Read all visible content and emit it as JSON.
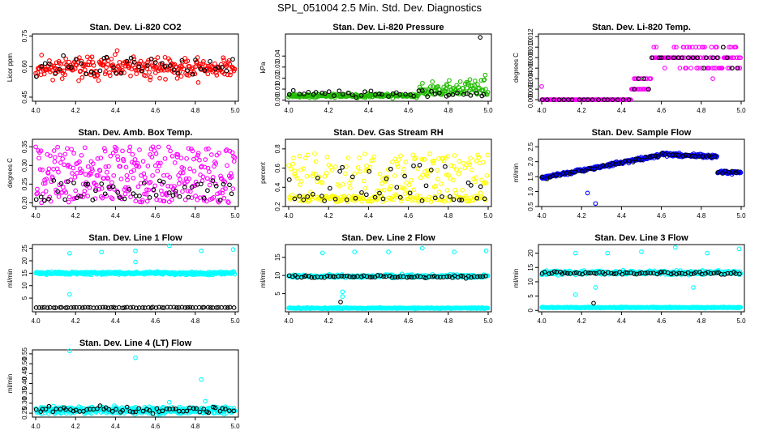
{
  "figure": {
    "title": "SPL_051004  2.5 Min. Std. Dev. Diagnostics"
  },
  "colors": {
    "axis": "#000000",
    "co2": "#ff0000",
    "pressure": "#22bb00",
    "temp": "#ff00ff",
    "box_temp": "#ff00ff",
    "rh": "#ffff00",
    "sample_flow": "#0000ff",
    "line_flow": "#00ffff",
    "overlay": "#000000"
  },
  "chart_data": [
    {
      "id": "co2",
      "type": "scatter",
      "title": "Stan. Dev. Li-820 CO2",
      "xlabel": "",
      "ylabel": "Licor ppm",
      "xlim": [
        4.0,
        5.0
      ],
      "ylim": [
        0.43,
        0.76
      ],
      "xticks": [
        "4.0",
        "4.2",
        "4.4",
        "4.6",
        "4.8",
        "5.0"
      ],
      "yticks": [
        0.45,
        0.6,
        0.75
      ],
      "ytick_labels": [
        "0.45",
        "0.60",
        "0.75"
      ],
      "series": [
        {
          "name": "Li-820 CO2 std dev",
          "color": "#ff0000",
          "profile": {
            "kind": "noise",
            "base": 0.595,
            "amp": 0.06,
            "n": 280,
            "lo": 0.44,
            "hi": 0.74,
            "seed": 11
          }
        },
        {
          "name": "overlay",
          "color": "#000000",
          "profile": {
            "kind": "noise",
            "base": 0.6,
            "amp": 0.055,
            "n": 45,
            "lo": 0.47,
            "hi": 0.72,
            "seed": 12
          }
        }
      ]
    },
    {
      "id": "pressure",
      "type": "scatter",
      "title": "Stan. Dev. Li-820 Pressure",
      "xlabel": "",
      "ylabel": "kPa",
      "xlim": [
        4.0,
        5.0
      ],
      "ylim": [
        -0.001,
        0.06
      ],
      "xticks": [
        "4.0",
        "4.2",
        "4.4",
        "4.6",
        "4.8",
        "5.0"
      ],
      "yticks": [
        0.0,
        0.01,
        0.02,
        0.03,
        0.04
      ],
      "ytick_labels": [
        "0.00",
        "0.01",
        "0.02",
        "0.03",
        "0.04"
      ],
      "series": [
        {
          "name": "Li-820 Pressure std dev",
          "color": "#22bb00",
          "profile": {
            "kind": "pressure",
            "n": 300,
            "seed": 21
          }
        },
        {
          "name": "overlay",
          "color": "#000000",
          "profile": {
            "kind": "noise",
            "base": 0.006,
            "amp": 0.003,
            "n": 45,
            "lo": 0.001,
            "hi": 0.014,
            "seed": 22
          }
        }
      ],
      "outliers": [
        {
          "x": 4.96,
          "y": 0.057,
          "color": "#000000"
        }
      ]
    },
    {
      "id": "temp",
      "type": "scatter",
      "title": "Stan. Dev. Li-820 Temp.",
      "xlabel": "",
      "ylabel": "degrees C",
      "xlim": [
        4.0,
        5.0
      ],
      "ylim": [
        -0.0003,
        0.0125
      ],
      "xticks": [
        "4.0",
        "4.2",
        "4.4",
        "4.6",
        "4.8",
        "5.0"
      ],
      "yticks": [
        0.0,
        0.002,
        0.004,
        0.006,
        0.008,
        0.01,
        0.012
      ],
      "ytick_labels": [
        "0.000",
        "0.002",
        "0.004",
        "0.006",
        "0.008",
        "0.010",
        "0.012"
      ],
      "series": [
        {
          "name": "Li-820 Temp std dev",
          "color": "#ff00ff",
          "profile": {
            "kind": "temp",
            "n": 260,
            "seed": 31
          }
        },
        {
          "name": "overlay",
          "color": "#000000",
          "profile": {
            "kind": "temp",
            "n": 40,
            "seed": 32
          }
        }
      ],
      "outliers": [
        {
          "x": 4.0,
          "y": 0.0025,
          "color": "#ff00ff"
        }
      ]
    },
    {
      "id": "box_temp",
      "type": "scatter",
      "title": "Stan. Dev. Amb. Box Temp.",
      "xlabel": "",
      "ylabel": "degrees C",
      "xlim": [
        4.0,
        5.0
      ],
      "ylim": [
        0.19,
        0.37
      ],
      "xticks": [
        "4.0",
        "4.2",
        "4.4",
        "4.6",
        "4.8",
        "5.0"
      ],
      "yticks": [
        0.2,
        0.25,
        0.3,
        0.35
      ],
      "ytick_labels": [
        "0.20",
        "0.25",
        "0.30",
        "0.35"
      ],
      "series": [
        {
          "name": "Amb. Box Temp std dev",
          "color": "#ff00ff",
          "profile": {
            "kind": "uniform",
            "lo": 0.2,
            "hi": 0.35,
            "n": 320,
            "seed": 41
          }
        },
        {
          "name": "overlay",
          "color": "#000000",
          "profile": {
            "kind": "uniform",
            "lo": 0.205,
            "hi": 0.26,
            "n": 50,
            "seed": 42
          }
        }
      ]
    },
    {
      "id": "rh",
      "type": "scatter",
      "title": "Stan. Dev. Gas Stream RH",
      "xlabel": "",
      "ylabel": "percent",
      "xlim": [
        4.0,
        5.0
      ],
      "ylim": [
        0.2,
        0.9
      ],
      "xticks": [
        "4.0",
        "4.2",
        "4.4",
        "4.6",
        "4.8",
        "5.0"
      ],
      "yticks": [
        0.2,
        0.4,
        0.6,
        0.8
      ],
      "ytick_labels": [
        "0.2",
        "0.4",
        "0.6",
        "0.8"
      ],
      "series": [
        {
          "name": "Gas Stream RH std dev",
          "color": "#ffff00",
          "profile": {
            "kind": "rh",
            "n": 300,
            "seed": 51
          }
        },
        {
          "name": "overlay",
          "color": "#000000",
          "profile": {
            "kind": "rh",
            "n": 45,
            "seed": 52
          }
        }
      ]
    },
    {
      "id": "sample_flow",
      "type": "scatter",
      "title": "Stan. Dev. Sample Flow",
      "xlabel": "",
      "ylabel": "ml/min",
      "xlim": [
        4.0,
        5.0
      ],
      "ylim": [
        0.5,
        2.75
      ],
      "xticks": [
        "4.0",
        "4.2",
        "4.4",
        "4.6",
        "4.8",
        "5.0"
      ],
      "yticks": [
        0.5,
        1.0,
        1.5,
        2.0,
        2.5
      ],
      "ytick_labels": [
        "0.5",
        "1.0",
        "1.5",
        "2.0",
        "2.5"
      ],
      "series": [
        {
          "name": "Sample Flow std dev",
          "color": "#0000ff",
          "profile": {
            "kind": "flow",
            "n": 360,
            "seed": 61
          }
        },
        {
          "name": "overlay",
          "color": "#000000",
          "profile": {
            "kind": "flow",
            "n": 60,
            "seed": 62
          }
        }
      ],
      "outliers": [
        {
          "x": 4.27,
          "y": 0.6,
          "color": "#0000ff"
        },
        {
          "x": 4.23,
          "y": 0.95,
          "color": "#0000ff"
        }
      ]
    },
    {
      "id": "line1",
      "type": "scatter",
      "title": "Stan. Dev. Line 1 Flow",
      "xlabel": "",
      "ylabel": "ml/min",
      "xlim": [
        4.0,
        5.0
      ],
      "ylim": [
        -0.5,
        26.5
      ],
      "xticks": [
        "4.0",
        "4.2",
        "4.4",
        "4.6",
        "4.8",
        "5.0"
      ],
      "yticks": [
        5,
        10,
        15,
        20,
        25
      ],
      "ytick_labels": [
        "5",
        "10",
        "15",
        "20",
        "25"
      ],
      "series": [
        {
          "name": "Line 1 Flow std dev",
          "color": "#00ffff",
          "profile": {
            "kind": "band",
            "base": 15.0,
            "amp": 0.5,
            "n": 330,
            "seed": 71
          }
        },
        {
          "name": "overlay",
          "color": "#000000",
          "profile": {
            "kind": "band",
            "base": 1.2,
            "amp": 0.15,
            "n": 70,
            "seed": 72
          }
        }
      ],
      "outliers": [
        {
          "x": 4.17,
          "y": 23.0,
          "color": "#00ffff"
        },
        {
          "x": 4.33,
          "y": 23.5,
          "color": "#00ffff"
        },
        {
          "x": 4.5,
          "y": 24.0,
          "color": "#00ffff"
        },
        {
          "x": 4.67,
          "y": 26.0,
          "color": "#00ffff"
        },
        {
          "x": 4.83,
          "y": 24.0,
          "color": "#00ffff"
        },
        {
          "x": 4.99,
          "y": 24.5,
          "color": "#00ffff"
        },
        {
          "x": 4.17,
          "y": 6.5,
          "color": "#00ffff"
        },
        {
          "x": 4.5,
          "y": 19.5,
          "color": "#00ffff"
        }
      ]
    },
    {
      "id": "line2",
      "type": "scatter",
      "title": "Stan. Dev. Line 2 Flow",
      "xlabel": "",
      "ylabel": "ml/min",
      "xlim": [
        4.0,
        5.0
      ],
      "ylim": [
        0,
        18.5
      ],
      "xticks": [
        "4.0",
        "4.2",
        "4.4",
        "4.6",
        "4.8",
        "5.0"
      ],
      "yticks": [
        5,
        10,
        15
      ],
      "ytick_labels": [
        "5",
        "10",
        "15"
      ],
      "series": [
        {
          "name": "Line 2 Flow cyan band",
          "color": "#00ffff",
          "profile": {
            "kind": "band",
            "base": 9.8,
            "amp": 0.4,
            "n": 300,
            "seed": 81
          }
        },
        {
          "name": "Line 2 Flow cyan low",
          "color": "#00ffff",
          "profile": {
            "kind": "band",
            "base": 1.0,
            "amp": 0.12,
            "n": 330,
            "seed": 82
          }
        },
        {
          "name": "overlay",
          "color": "#000000",
          "profile": {
            "kind": "band",
            "base": 9.7,
            "amp": 0.3,
            "n": 70,
            "seed": 83
          }
        }
      ],
      "outliers": [
        {
          "x": 4.26,
          "y": 2.7,
          "color": "#000000"
        },
        {
          "x": 4.27,
          "y": 4.2,
          "color": "#00ffff"
        },
        {
          "x": 4.27,
          "y": 5.5,
          "color": "#00ffff"
        },
        {
          "x": 4.33,
          "y": 16.5,
          "color": "#00ffff"
        },
        {
          "x": 4.5,
          "y": 16.5,
          "color": "#00ffff"
        },
        {
          "x": 4.67,
          "y": 17.5,
          "color": "#00ffff"
        },
        {
          "x": 4.83,
          "y": 16.5,
          "color": "#00ffff"
        },
        {
          "x": 4.99,
          "y": 16.8,
          "color": "#00ffff"
        },
        {
          "x": 4.17,
          "y": 16.2,
          "color": "#00ffff"
        }
      ]
    },
    {
      "id": "line3",
      "type": "scatter",
      "title": "Stan. Dev. Line 3 Flow",
      "xlabel": "",
      "ylabel": "ml/min",
      "xlim": [
        4.0,
        5.0
      ],
      "ylim": [
        -0.5,
        23.0
      ],
      "xticks": [
        "4.0",
        "4.2",
        "4.4",
        "4.6",
        "4.8",
        "5.0"
      ],
      "yticks": [
        0,
        5,
        10,
        15,
        20
      ],
      "ytick_labels": [
        "0",
        "5",
        "10",
        "15",
        "20"
      ],
      "series": [
        {
          "name": "Line 3 Flow cyan band",
          "color": "#00ffff",
          "profile": {
            "kind": "band",
            "base": 13.2,
            "amp": 0.6,
            "n": 300,
            "seed": 91
          }
        },
        {
          "name": "Line 3 Flow cyan low",
          "color": "#00ffff",
          "profile": {
            "kind": "band",
            "base": 1.0,
            "amp": 0.15,
            "n": 330,
            "seed": 92
          }
        },
        {
          "name": "overlay",
          "color": "#000000",
          "profile": {
            "kind": "band",
            "base": 13.0,
            "amp": 0.4,
            "n": 70,
            "seed": 93
          }
        }
      ],
      "outliers": [
        {
          "x": 4.26,
          "y": 2.5,
          "color": "#000000"
        },
        {
          "x": 4.27,
          "y": 8.0,
          "color": "#00ffff"
        },
        {
          "x": 4.17,
          "y": 5.5,
          "color": "#00ffff"
        },
        {
          "x": 4.17,
          "y": 20.0,
          "color": "#00ffff"
        },
        {
          "x": 4.33,
          "y": 20.0,
          "color": "#00ffff"
        },
        {
          "x": 4.5,
          "y": 20.5,
          "color": "#00ffff"
        },
        {
          "x": 4.67,
          "y": 22.0,
          "color": "#00ffff"
        },
        {
          "x": 4.76,
          "y": 8.0,
          "color": "#00ffff"
        },
        {
          "x": 4.83,
          "y": 20.0,
          "color": "#00ffff"
        },
        {
          "x": 4.99,
          "y": 21.5,
          "color": "#00ffff"
        }
      ]
    },
    {
      "id": "line4",
      "type": "scatter",
      "title": "Stan. Dev. Line 4 (LT) Flow",
      "xlabel": "",
      "ylabel": "ml/min",
      "xlim": [
        4.0,
        5.0
      ],
      "ylim": [
        0.23,
        0.57
      ],
      "xticks": [
        "4.0",
        "4.2",
        "4.4",
        "4.6",
        "4.8",
        "5.0"
      ],
      "yticks": [
        0.25,
        0.3,
        0.35,
        0.4,
        0.45,
        0.5,
        0.55
      ],
      "ytick_labels": [
        "0.25",
        "0.30",
        "0.35",
        "0.40",
        "0.45",
        "0.50",
        "0.55"
      ],
      "series": [
        {
          "name": "Line 4 (LT) Flow std dev",
          "color": "#00ffff",
          "profile": {
            "kind": "band",
            "base": 0.265,
            "amp": 0.015,
            "n": 420,
            "seed": 101
          }
        },
        {
          "name": "overlay",
          "color": "#000000",
          "profile": {
            "kind": "band",
            "base": 0.268,
            "amp": 0.013,
            "n": 60,
            "seed": 102
          }
        }
      ],
      "outliers": [
        {
          "x": 4.17,
          "y": 0.565,
          "color": "#00ffff"
        },
        {
          "x": 4.5,
          "y": 0.53,
          "color": "#00ffff"
        },
        {
          "x": 4.83,
          "y": 0.42,
          "color": "#00ffff"
        },
        {
          "x": 4.67,
          "y": 0.305,
          "color": "#00ffff"
        },
        {
          "x": 4.85,
          "y": 0.31,
          "color": "#00ffff"
        }
      ]
    }
  ]
}
